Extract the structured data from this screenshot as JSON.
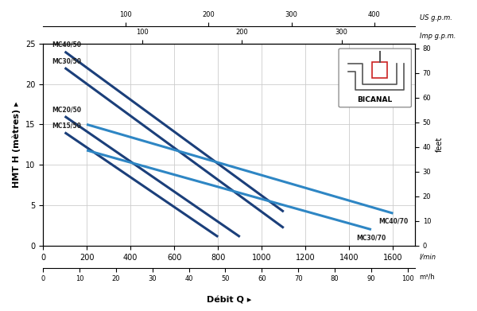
{
  "chart_data": {
    "type": "line",
    "xlabel": "Débit Q ▸",
    "x_unit": "l/min",
    "ylabel": "HMT H (mètres) ▸",
    "xlim": [
      0,
      1700
    ],
    "xticks": [
      0,
      200,
      400,
      600,
      800,
      1000,
      1200,
      1400,
      1600
    ],
    "ylim": [
      0,
      25
    ],
    "yticks": [
      0,
      5,
      10,
      15,
      20,
      25
    ],
    "y2label": "feet",
    "y2lim": [
      0,
      82.02
    ],
    "y2ticks": [
      0,
      10,
      20,
      30,
      40,
      50,
      60,
      70,
      80
    ],
    "extra_axes": [
      {
        "label": "US g.p.m.",
        "lim": [
          0,
          449.1
        ],
        "ticks": [
          100,
          200,
          300,
          400
        ]
      },
      {
        "label": "Imp g.p.m.",
        "lim": [
          0,
          373.9
        ],
        "ticks": [
          100,
          200,
          300
        ]
      },
      {
        "label": "m³/h",
        "lim": [
          0,
          102
        ],
        "ticks": [
          0,
          10,
          20,
          30,
          40,
          50,
          60,
          70,
          80,
          90,
          100
        ]
      }
    ],
    "inset_label": "BICANAL",
    "grid": true,
    "series": [
      {
        "name": "MC40/50",
        "color": "#1b3f7a",
        "x": [
          100,
          1100
        ],
        "values": [
          24,
          4.2
        ]
      },
      {
        "name": "MC30/50",
        "color": "#1b3f7a",
        "x": [
          100,
          1100
        ],
        "values": [
          22,
          2.2
        ]
      },
      {
        "name": "MC20/50",
        "color": "#1b3f7a",
        "x": [
          100,
          900
        ],
        "values": [
          16,
          1.1
        ]
      },
      {
        "name": "MC15/50",
        "color": "#1b3f7a",
        "x": [
          100,
          800
        ],
        "values": [
          14,
          1.1
        ]
      },
      {
        "name": "MC40/70",
        "color": "#2e86c4",
        "x": [
          200,
          1600
        ],
        "values": [
          15,
          4
        ]
      },
      {
        "name": "MC30/70",
        "color": "#2e86c4",
        "x": [
          200,
          1500
        ],
        "values": [
          11.8,
          2
        ]
      }
    ]
  }
}
